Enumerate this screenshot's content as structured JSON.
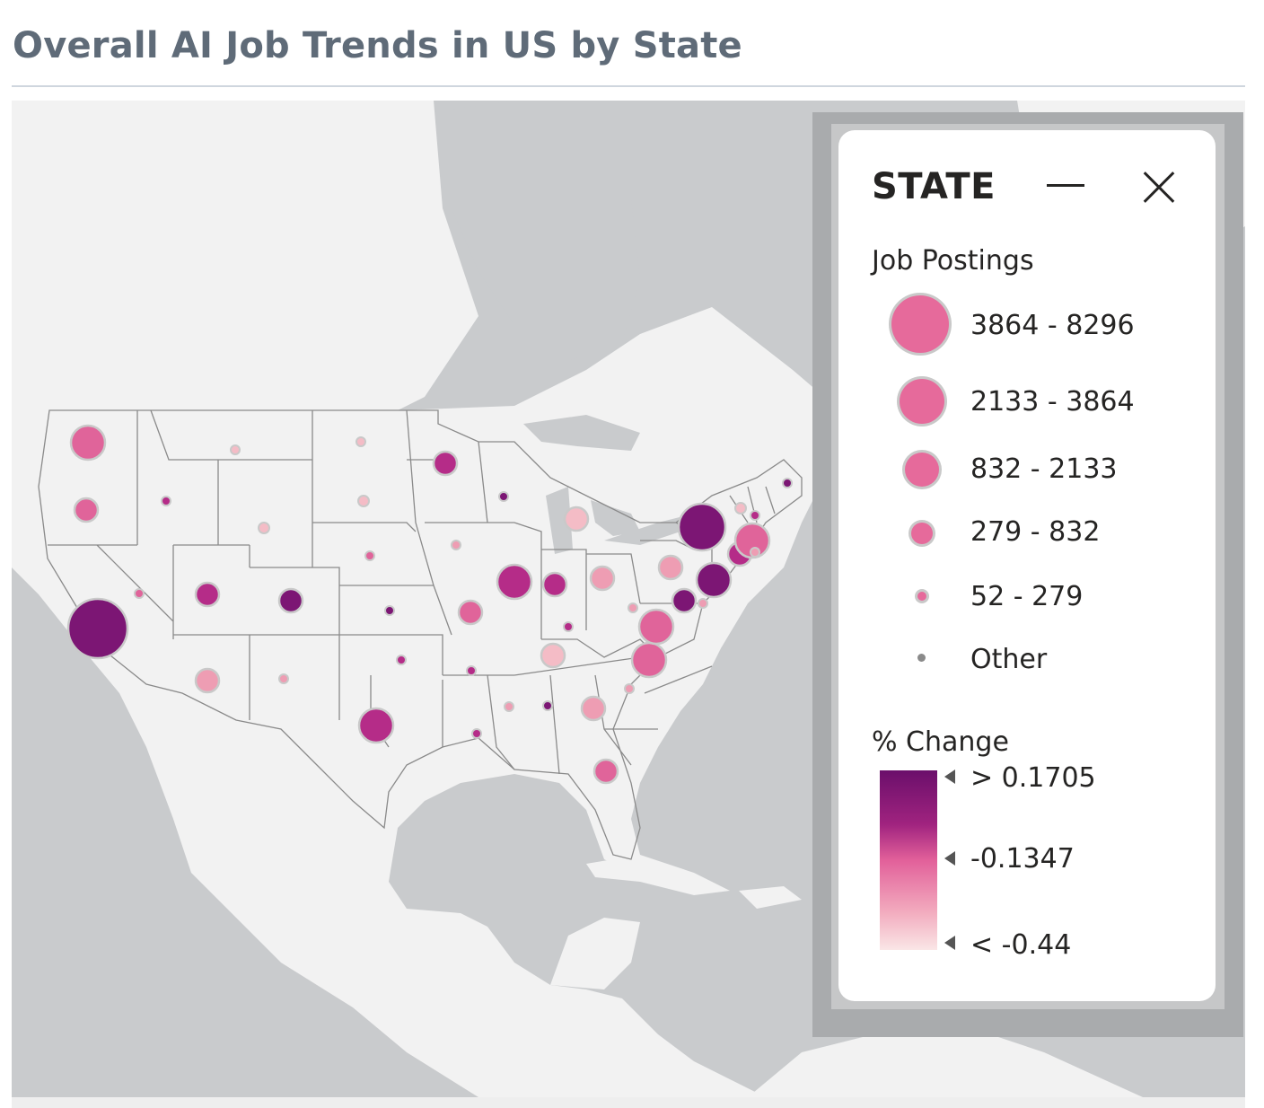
{
  "title": "Overall AI Job Trends in US by State",
  "legend": {
    "title": "STATE",
    "minimize_label": "Minimize legend",
    "close_label": "Close legend",
    "size_section_title": "Job Postings",
    "size_items": [
      {
        "label": "3864 - 8296"
      },
      {
        "label": "2133 - 3864"
      },
      {
        "label": "832 - 2133"
      },
      {
        "label": "279 - 832"
      },
      {
        "label": "52 - 279"
      },
      {
        "label": "Other"
      }
    ],
    "color_section_title": "% Change",
    "color_stops": [
      {
        "label": "> 0.1705"
      },
      {
        "label": "-0.1347"
      },
      {
        "label": "< -0.44"
      }
    ]
  },
  "colors": {
    "ocean": "#c9cbcd",
    "land": "#f2f2f2",
    "state_border": "#8a8a8a",
    "size_dot": "#e66a9b",
    "low_change": "#f4bcc6",
    "high_change": "#6b0f6b"
  },
  "bubbles": [
    {
      "state": "CA",
      "size_class": 1,
      "change_class": 4
    },
    {
      "state": "WA",
      "size_class": 3,
      "change_class": 2
    },
    {
      "state": "OR",
      "size_class": 4,
      "change_class": 2
    },
    {
      "state": "ID",
      "size_class": 5,
      "change_class": 3
    },
    {
      "state": "MT",
      "size_class": 5,
      "change_class": 0
    },
    {
      "state": "ND",
      "size_class": 5,
      "change_class": 0
    },
    {
      "state": "SD",
      "size_class": 6,
      "change_class": 0
    },
    {
      "state": "WY",
      "size_class": 6,
      "change_class": 0
    },
    {
      "state": "NV",
      "size_class": 5,
      "change_class": 2
    },
    {
      "state": "UT",
      "size_class": 4,
      "change_class": 3
    },
    {
      "state": "CO",
      "size_class": 4,
      "change_class": 4
    },
    {
      "state": "NE",
      "size_class": 5,
      "change_class": 2
    },
    {
      "state": "KS",
      "size_class": 5,
      "change_class": 4
    },
    {
      "state": "IA",
      "size_class": 5,
      "change_class": 1
    },
    {
      "state": "MN",
      "size_class": 4,
      "change_class": 3
    },
    {
      "state": "WI",
      "size_class": 5,
      "change_class": 4
    },
    {
      "state": "IL",
      "size_class": 3,
      "change_class": 3
    },
    {
      "state": "MO",
      "size_class": 4,
      "change_class": 2
    },
    {
      "state": "MI",
      "size_class": 4,
      "change_class": 0
    },
    {
      "state": "IN",
      "size_class": 4,
      "change_class": 3
    },
    {
      "state": "OH",
      "size_class": 4,
      "change_class": 1
    },
    {
      "state": "KY",
      "size_class": 5,
      "change_class": 3
    },
    {
      "state": "TN",
      "size_class": 4,
      "change_class": 0
    },
    {
      "state": "AZ",
      "size_class": 4,
      "change_class": 1
    },
    {
      "state": "NM",
      "size_class": 5,
      "change_class": 1
    },
    {
      "state": "OK",
      "size_class": 5,
      "change_class": 3
    },
    {
      "state": "TX",
      "size_class": 3,
      "change_class": 3
    },
    {
      "state": "AR",
      "size_class": 5,
      "change_class": 3
    },
    {
      "state": "LA",
      "size_class": 5,
      "change_class": 3
    },
    {
      "state": "MS",
      "size_class": 5,
      "change_class": 1
    },
    {
      "state": "AL",
      "size_class": 5,
      "change_class": 4
    },
    {
      "state": "GA",
      "size_class": 4,
      "change_class": 1
    },
    {
      "state": "FL",
      "size_class": 4,
      "change_class": 2
    },
    {
      "state": "SC",
      "size_class": 5,
      "change_class": 1
    },
    {
      "state": "NC",
      "size_class": 3,
      "change_class": 2
    },
    {
      "state": "VA",
      "size_class": 3,
      "change_class": 2
    },
    {
      "state": "WV",
      "size_class": 5,
      "change_class": 1
    },
    {
      "state": "PA",
      "size_class": 4,
      "change_class": 1
    },
    {
      "state": "NY",
      "size_class": 2,
      "change_class": 4
    },
    {
      "state": "NJ",
      "size_class": 3,
      "change_class": 4
    },
    {
      "state": "MD",
      "size_class": 4,
      "change_class": 4
    },
    {
      "state": "DE",
      "size_class": 5,
      "change_class": 1
    },
    {
      "state": "CT",
      "size_class": 4,
      "change_class": 3
    },
    {
      "state": "MA",
      "size_class": 3,
      "change_class": 2
    },
    {
      "state": "RI",
      "size_class": 5,
      "change_class": 1
    },
    {
      "state": "VT",
      "size_class": 6,
      "change_class": 0
    },
    {
      "state": "NH",
      "size_class": 5,
      "change_class": 3
    },
    {
      "state": "ME",
      "size_class": 5,
      "change_class": 4
    }
  ]
}
